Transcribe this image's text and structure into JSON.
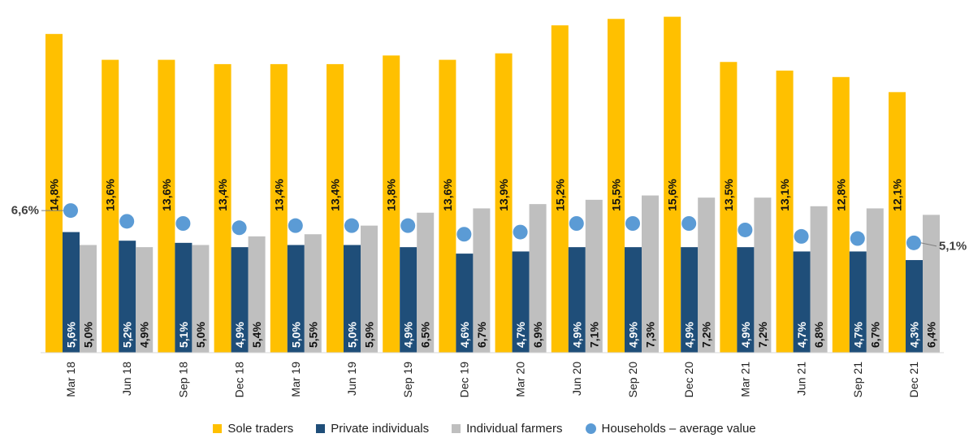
{
  "chart_data": {
    "type": "bar",
    "categories": [
      "Mar 18",
      "Jun 18",
      "Sep 18",
      "Dec 18",
      "Mar 19",
      "Jun 19",
      "Sep 19",
      "Dec 19",
      "Mar 20",
      "Jun 20",
      "Sep 20",
      "Dec 20",
      "Mar 21",
      "Jun 21",
      "Sep 21",
      "Dec 21"
    ],
    "series": [
      {
        "name": "Sole traders",
        "kind": "bar",
        "color": "#FFC000",
        "values": [
          14.8,
          13.6,
          13.6,
          13.4,
          13.4,
          13.4,
          13.8,
          13.6,
          13.9,
          15.2,
          15.5,
          15.6,
          13.5,
          13.1,
          12.8,
          12.1
        ],
        "labels": [
          "14,8%",
          "13,6%",
          "13,6%",
          "13,4%",
          "13,4%",
          "13,4%",
          "13,8%",
          "13,6%",
          "13,9%",
          "15,2%",
          "15,5%",
          "15,6%",
          "13,5%",
          "13,1%",
          "12,8%",
          "12,1%"
        ]
      },
      {
        "name": "Private individuals",
        "kind": "bar",
        "color": "#1F4E79",
        "values": [
          5.6,
          5.2,
          5.1,
          4.9,
          5.0,
          5.0,
          4.9,
          4.6,
          4.7,
          4.9,
          4.9,
          4.9,
          4.9,
          4.7,
          4.7,
          4.3
        ],
        "labels": [
          "5,6%",
          "5,2%",
          "5,1%",
          "4,9%",
          "5,0%",
          "5,0%",
          "4,9%",
          "4,6%",
          "4,7%",
          "4,9%",
          "4,9%",
          "4,9%",
          "4,9%",
          "4,7%",
          "4,7%",
          "4,3%"
        ]
      },
      {
        "name": "Individual farmers",
        "kind": "bar",
        "color": "#BFBFBF",
        "values": [
          5.0,
          4.9,
          5.0,
          5.4,
          5.5,
          5.9,
          6.5,
          6.7,
          6.9,
          7.1,
          7.3,
          7.2,
          7.2,
          6.8,
          6.7,
          6.4
        ],
        "labels": [
          "5,0%",
          "4,9%",
          "5,0%",
          "5,4%",
          "5,5%",
          "5,9%",
          "6,5%",
          "6,7%",
          "6,9%",
          "7,1%",
          "7,3%",
          "7,2%",
          "7,2%",
          "6,8%",
          "6,7%",
          "6,4%"
        ]
      },
      {
        "name": "Households – average value",
        "kind": "point",
        "color": "#5B9BD5",
        "values": [
          6.6,
          6.1,
          6.0,
          5.8,
          5.9,
          5.9,
          5.9,
          5.5,
          5.6,
          6.0,
          6.0,
          6.0,
          5.7,
          5.4,
          5.3,
          5.1
        ]
      }
    ],
    "endpoint_labels": {
      "first": "6,6%",
      "last": "5,1%"
    },
    "ylim": [
      0,
      16
    ],
    "grid": false,
    "legend": "bottom",
    "title": "",
    "xlabel": "",
    "ylabel": ""
  }
}
